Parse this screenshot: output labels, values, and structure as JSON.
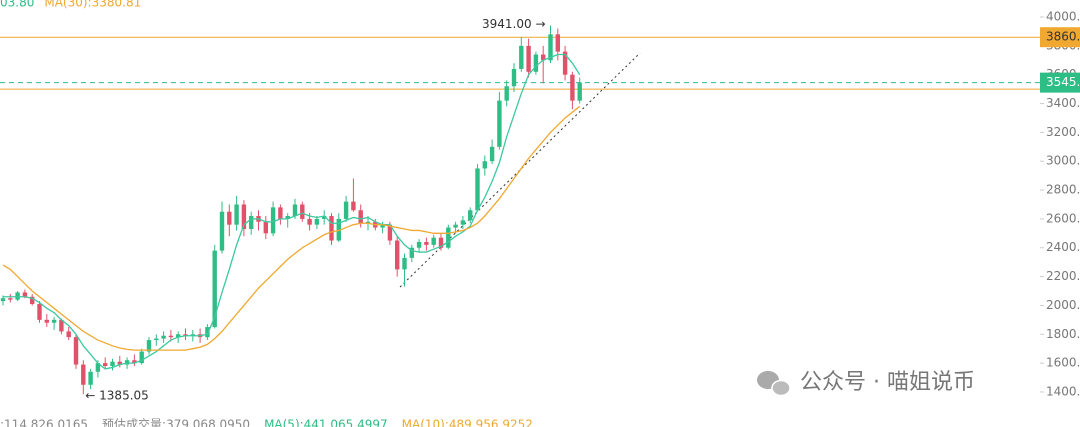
{
  "chart_data": {
    "type": "candlestick",
    "up_color": "#2ebd85",
    "down_color": "#e0526a",
    "ylim": [
      1157,
      4118
    ],
    "yticks": [
      {
        "value": 1400,
        "label": "1400.0"
      },
      {
        "value": 1600,
        "label": "1600.0"
      },
      {
        "value": 1800,
        "label": "1800.0"
      },
      {
        "value": 2000,
        "label": "2000.0"
      },
      {
        "value": 2200,
        "label": "2200.0"
      },
      {
        "value": 2400,
        "label": "2400.0"
      },
      {
        "value": 2600,
        "label": "2600.0"
      },
      {
        "value": 2800,
        "label": "2800.0"
      },
      {
        "value": 3000,
        "label": "3000.0"
      },
      {
        "value": 3200,
        "label": "3200.0"
      },
      {
        "value": 3400,
        "label": "3400.0"
      },
      {
        "value": 3600,
        "label": "3600.0"
      },
      {
        "value": 3800,
        "label": "3800.0"
      },
      {
        "value": 4000,
        "label": "4000.0"
      }
    ],
    "top_legend": [
      {
        "text": "03.80",
        "color": "#2ebd85"
      },
      {
        "text": "MA(30):3380.81",
        "color": "#f0a830"
      }
    ],
    "bottom_legend": [
      {
        "text": ":114,826.0165",
        "color": "#888888"
      },
      {
        "text": "预估成交量:379,068.0950",
        "color": "#888888"
      },
      {
        "text": "MA(5):441,065.4997",
        "color": "#2ebd85"
      },
      {
        "text": "MA(10):489,956.9252",
        "color": "#f0a830"
      }
    ],
    "annotations": [
      {
        "label": "3941.00 →",
        "value": 3941
      },
      {
        "label": "← 1385.05",
        "value": 1385.05
      }
    ],
    "price_lines": [
      {
        "value": 3860,
        "label": "3860.",
        "color": "#f0a830",
        "dashed": false
      },
      {
        "value": 3545,
        "label": "3545.",
        "color": "#2ebd85",
        "dashed": true
      },
      {
        "value": 3500,
        "color": "#f0a830",
        "dashed": false
      }
    ],
    "ma_lines": [
      {
        "color": "#3cc9a0",
        "values": [
          2060,
          2060,
          2060,
          2060,
          2050,
          2020,
          1980,
          1950,
          1900,
          1860,
          1800,
          1720,
          1660,
          1600,
          1560,
          1570,
          1590,
          1600,
          1600,
          1620,
          1650,
          1680,
          1720,
          1760,
          1780,
          1790,
          1790,
          1790,
          1800,
          1920,
          2090,
          2250,
          2420,
          2560,
          2600,
          2600,
          2580,
          2580,
          2600,
          2600,
          2620,
          2640,
          2620,
          2610,
          2620,
          2570,
          2570,
          2590,
          2610,
          2600,
          2610,
          2580,
          2560,
          2560,
          2480,
          2420,
          2380,
          2370,
          2370,
          2390,
          2410,
          2440,
          2480,
          2510,
          2550,
          2660,
          2750,
          2860,
          2990,
          3170,
          3320,
          3470,
          3600,
          3660,
          3700,
          3720,
          3740,
          3740,
          3680,
          3600
        ]
      },
      {
        "color": "#f0a830",
        "values": [
          2280,
          2250,
          2200,
          2150,
          2100,
          2060,
          2020,
          1980,
          1940,
          1900,
          1860,
          1820,
          1790,
          1760,
          1740,
          1720,
          1705,
          1695,
          1690,
          1690,
          1690,
          1690,
          1690,
          1690,
          1690,
          1690,
          1700,
          1710,
          1730,
          1770,
          1820,
          1880,
          1940,
          2000,
          2060,
          2120,
          2170,
          2220,
          2270,
          2320,
          2360,
          2400,
          2430,
          2460,
          2490,
          2510,
          2520,
          2540,
          2560,
          2570,
          2570,
          2560,
          2560,
          2550,
          2540,
          2530,
          2520,
          2520,
          2510,
          2500,
          2500,
          2500,
          2510,
          2520,
          2540,
          2570,
          2620,
          2680,
          2740,
          2810,
          2880,
          2950,
          3020,
          3080,
          3140,
          3200,
          3250,
          3300,
          3340,
          3380
        ]
      }
    ],
    "candles": [
      [
        2030,
        2070,
        2000,
        2050
      ],
      [
        2050,
        2080,
        2020,
        2040
      ],
      [
        2040,
        2100,
        2030,
        2090
      ],
      [
        2090,
        2110,
        2050,
        2060
      ],
      [
        2060,
        2080,
        2000,
        2010
      ],
      [
        2010,
        2030,
        1880,
        1900
      ],
      [
        1900,
        1940,
        1850,
        1880
      ],
      [
        1880,
        1920,
        1830,
        1900
      ],
      [
        1900,
        1910,
        1800,
        1820
      ],
      [
        1820,
        1850,
        1760,
        1780
      ],
      [
        1780,
        1800,
        1560,
        1590
      ],
      [
        1590,
        1620,
        1385.05,
        1450
      ],
      [
        1450,
        1560,
        1420,
        1540
      ],
      [
        1540,
        1620,
        1500,
        1600
      ],
      [
        1600,
        1640,
        1560,
        1580
      ],
      [
        1580,
        1630,
        1550,
        1610
      ],
      [
        1610,
        1650,
        1570,
        1590
      ],
      [
        1590,
        1640,
        1560,
        1620
      ],
      [
        1620,
        1660,
        1580,
        1600
      ],
      [
        1600,
        1700,
        1590,
        1680
      ],
      [
        1680,
        1780,
        1660,
        1760
      ],
      [
        1760,
        1800,
        1720,
        1770
      ],
      [
        1770,
        1820,
        1740,
        1790
      ],
      [
        1790,
        1830,
        1750,
        1780
      ],
      [
        1780,
        1820,
        1740,
        1800
      ],
      [
        1800,
        1840,
        1760,
        1790
      ],
      [
        1790,
        1830,
        1750,
        1800
      ],
      [
        1800,
        1840,
        1740,
        1780
      ],
      [
        1780,
        1870,
        1760,
        1850
      ],
      [
        1850,
        2420,
        1840,
        2380
      ],
      [
        2380,
        2720,
        2360,
        2650
      ],
      [
        2650,
        2700,
        2480,
        2560
      ],
      [
        2560,
        2760,
        2520,
        2700
      ],
      [
        2700,
        2730,
        2480,
        2530
      ],
      [
        2530,
        2650,
        2490,
        2620
      ],
      [
        2620,
        2660,
        2520,
        2580
      ],
      [
        2580,
        2620,
        2460,
        2500
      ],
      [
        2500,
        2720,
        2480,
        2680
      ],
      [
        2680,
        2700,
        2560,
        2600
      ],
      [
        2600,
        2640,
        2540,
        2620
      ],
      [
        2620,
        2740,
        2600,
        2700
      ],
      [
        2700,
        2720,
        2580,
        2600
      ],
      [
        2600,
        2640,
        2520,
        2560
      ],
      [
        2560,
        2620,
        2530,
        2600
      ],
      [
        2600,
        2660,
        2560,
        2620
      ],
      [
        2620,
        2640,
        2420,
        2450
      ],
      [
        2450,
        2640,
        2440,
        2600
      ],
      [
        2600,
        2760,
        2580,
        2720
      ],
      [
        2720,
        2880,
        2650,
        2660
      ],
      [
        2660,
        2700,
        2540,
        2570
      ],
      [
        2570,
        2620,
        2520,
        2580
      ],
      [
        2580,
        2600,
        2520,
        2540
      ],
      [
        2540,
        2580,
        2500,
        2560
      ],
      [
        2560,
        2580,
        2420,
        2450
      ],
      [
        2450,
        2480,
        2200,
        2250
      ],
      [
        2250,
        2360,
        2130,
        2330
      ],
      [
        2330,
        2420,
        2300,
        2400
      ],
      [
        2400,
        2460,
        2370,
        2440
      ],
      [
        2440,
        2470,
        2380,
        2420
      ],
      [
        2420,
        2490,
        2400,
        2470
      ],
      [
        2470,
        2500,
        2380,
        2400
      ],
      [
        2400,
        2560,
        2390,
        2540
      ],
      [
        2540,
        2580,
        2500,
        2560
      ],
      [
        2560,
        2620,
        2530,
        2590
      ],
      [
        2590,
        2680,
        2570,
        2660
      ],
      [
        2660,
        2980,
        2650,
        2950
      ],
      [
        2950,
        3040,
        2900,
        3000
      ],
      [
        3000,
        3150,
        2980,
        3100
      ],
      [
        3100,
        3480,
        3080,
        3420
      ],
      [
        3420,
        3560,
        3380,
        3520
      ],
      [
        3520,
        3680,
        3480,
        3640
      ],
      [
        3640,
        3860,
        3620,
        3800
      ],
      [
        3800,
        3850,
        3580,
        3620
      ],
      [
        3620,
        3760,
        3600,
        3740
      ],
      [
        3740,
        3800,
        3540,
        3700
      ],
      [
        3700,
        3941,
        3680,
        3880
      ],
      [
        3880,
        3920,
        3700,
        3760
      ],
      [
        3760,
        3800,
        3560,
        3600
      ],
      [
        3600,
        3620,
        3360,
        3420
      ],
      [
        3420,
        3580,
        3400,
        3545
      ]
    ]
  },
  "watermark": "公众号 · 喵姐说币"
}
